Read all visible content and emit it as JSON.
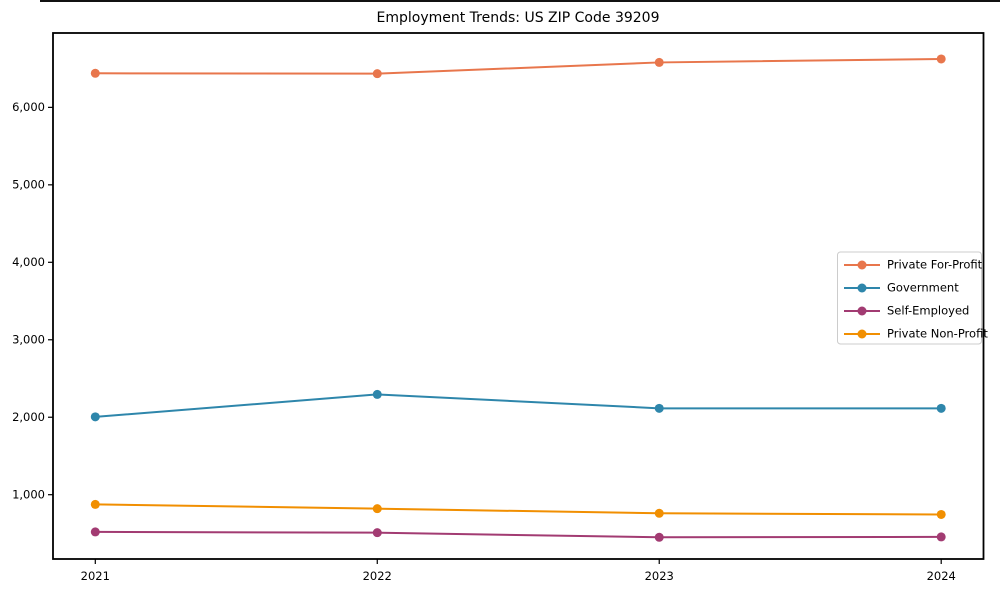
{
  "chart_data": {
    "type": "line",
    "title": "Employment Trends: US ZIP Code 39209",
    "x": [
      2021,
      2022,
      2023,
      2024
    ],
    "x_tick_labels": [
      "2021",
      "2022",
      "2023",
      "2024"
    ],
    "y_ticks": [
      1000,
      2000,
      3000,
      4000,
      5000,
      6000
    ],
    "y_tick_labels": [
      "1,000",
      "2,000",
      "3,000",
      "4,000",
      "5,000",
      "6,000"
    ],
    "xlabel": "",
    "ylabel": "",
    "xlim": [
      2020.85,
      2024.15
    ],
    "ylim": [
      170,
      6960
    ],
    "grid": false,
    "marker": "circle",
    "legend": {
      "position": "center-right",
      "framed": true
    },
    "series": [
      {
        "name": "Private For-Profit",
        "color": "#E8764C",
        "values": [
          6440,
          6435,
          6580,
          6625
        ]
      },
      {
        "name": "Government",
        "color": "#2E86AB",
        "values": [
          2005,
          2295,
          2115,
          2115
        ]
      },
      {
        "name": "Self-Employed",
        "color": "#A23B72",
        "values": [
          520,
          510,
          450,
          455
        ]
      },
      {
        "name": "Private Non-Profit",
        "color": "#F18F01",
        "values": [
          875,
          820,
          760,
          745
        ]
      }
    ]
  }
}
